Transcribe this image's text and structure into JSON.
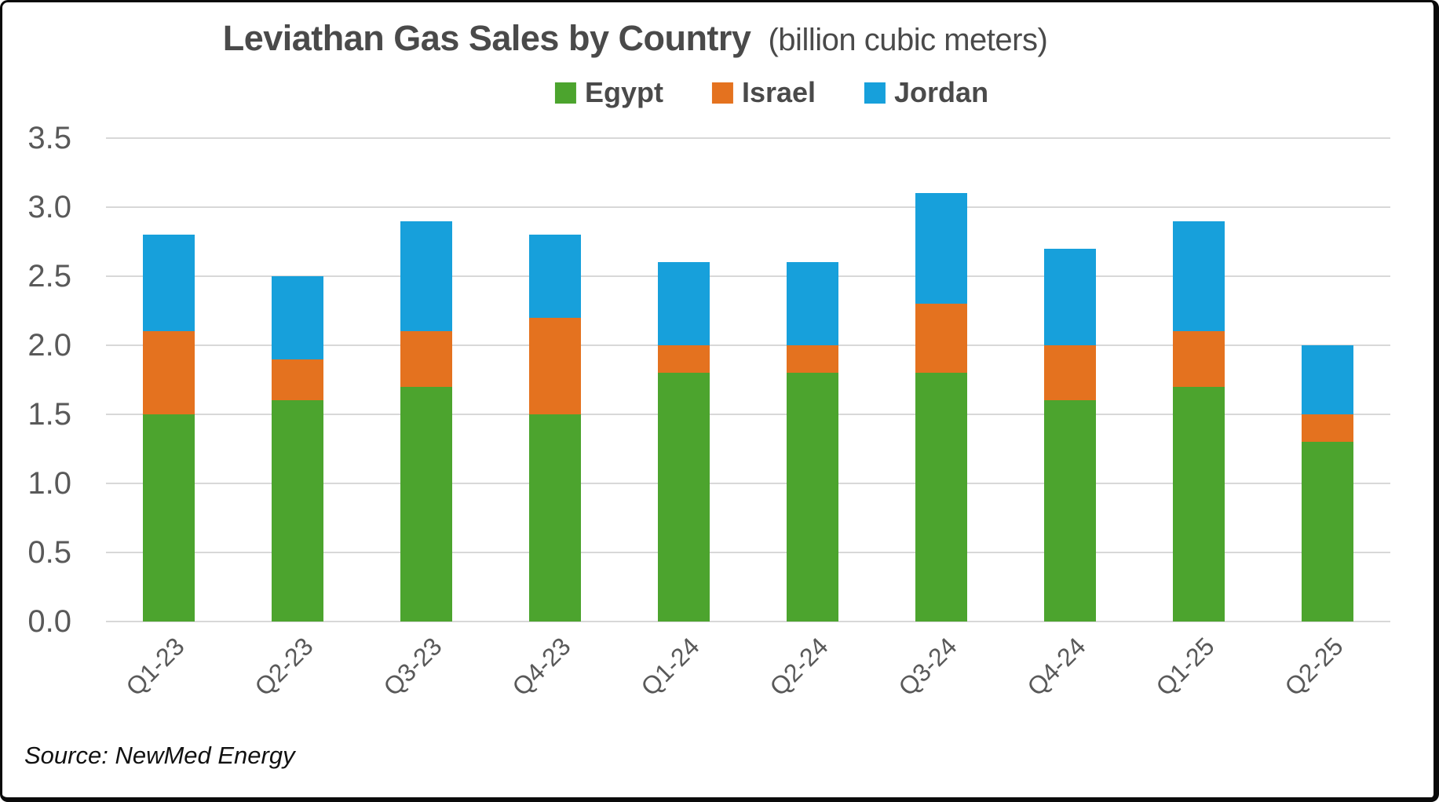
{
  "title": {
    "main": "Leviathan Gas Sales by Country",
    "unit": "(billion cubic meters)"
  },
  "source": "Source: NewMed Energy",
  "theme": {
    "title_color": "#4a4a4a",
    "axis_text_color": "#595959",
    "gridline_color": "#d8d8d8",
    "frame_border_color": "#0a0a0a",
    "background": "#ffffff"
  },
  "chart_data": {
    "type": "bar",
    "stacked": true,
    "title": "Leviathan Gas Sales by Country",
    "subtitle": "(billion cubic meters)",
    "categories": [
      "Q1-23",
      "Q2-23",
      "Q3-23",
      "Q4-23",
      "Q1-24",
      "Q2-24",
      "Q3-24",
      "Q4-24",
      "Q1-25",
      "Q2-25"
    ],
    "series": [
      {
        "name": "Egypt",
        "color": "#4ca42e",
        "values": [
          1.5,
          1.6,
          1.7,
          1.5,
          1.8,
          1.8,
          1.8,
          1.6,
          1.7,
          1.3
        ]
      },
      {
        "name": "Israel",
        "color": "#e4721f",
        "values": [
          0.6,
          0.3,
          0.4,
          0.7,
          0.2,
          0.2,
          0.5,
          0.4,
          0.4,
          0.2
        ]
      },
      {
        "name": "Jordan",
        "color": "#17a0db",
        "values": [
          0.7,
          0.6,
          0.8,
          0.6,
          0.6,
          0.6,
          0.8,
          0.7,
          0.8,
          0.5
        ]
      }
    ],
    "totals": [
      2.8,
      2.5,
      2.9,
      2.8,
      2.6,
      2.6,
      3.1,
      2.7,
      2.9,
      2.0
    ],
    "ylim": [
      0,
      3.5
    ],
    "ytick_step": 0.5,
    "y_ticks": [
      "0.0",
      "0.5",
      "1.0",
      "1.5",
      "2.0",
      "2.5",
      "3.0",
      "3.5"
    ],
    "xlabel": "",
    "ylabel": "",
    "grid": true,
    "legend_position": "top",
    "x_label_rotation_deg": -45
  }
}
